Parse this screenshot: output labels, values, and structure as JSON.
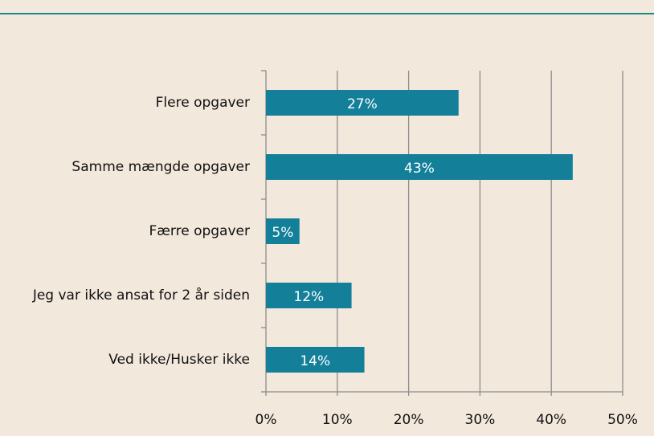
{
  "chart_data": {
    "type": "bar",
    "orientation": "horizontal",
    "categories": [
      "Flere opgaver",
      "Samme mængde opgaver",
      "Færre opgaver",
      "Jeg var ikke ansat for 2 år siden",
      "Ved ikke/Husker ikke"
    ],
    "values": [
      27,
      43,
      4.7,
      12,
      13.8
    ],
    "value_labels": [
      "27%",
      "43%",
      "5%",
      "12%",
      "14%"
    ],
    "color": "#137f99",
    "xlim": [
      0,
      50
    ],
    "xticks": [
      {
        "value": 0,
        "label": "0%"
      },
      {
        "value": 10,
        "label": "10%"
      },
      {
        "value": 20,
        "label": "20%"
      },
      {
        "value": 30,
        "label": "30%"
      },
      {
        "value": 40,
        "label": "40%"
      },
      {
        "value": 50,
        "label": "50%"
      }
    ],
    "grid": true
  }
}
